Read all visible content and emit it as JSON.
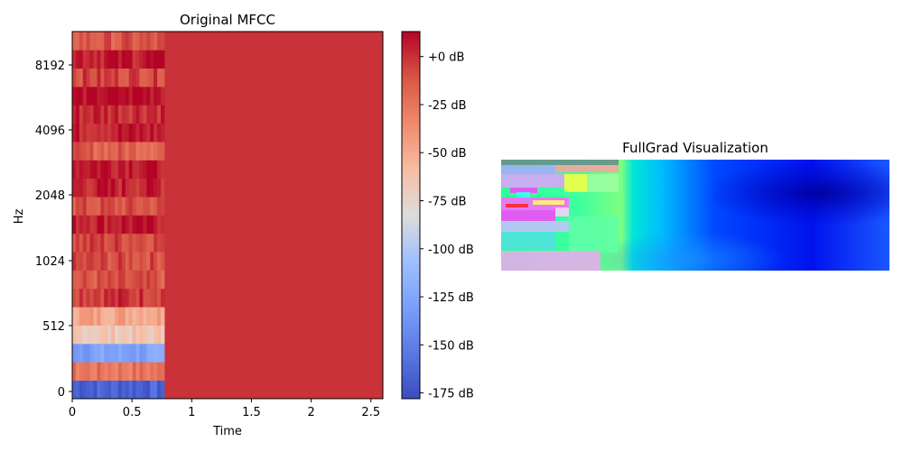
{
  "figure": {
    "left_title": "Original MFCC",
    "right_title": "FullGrad Visualization"
  },
  "chart_data": [
    {
      "type": "heatmap",
      "title": "Original MFCC",
      "xlabel": "Time",
      "ylabel": "Hz",
      "xlim": [
        0,
        2.6
      ],
      "x_ticks": [
        "0",
        "0.5",
        "1",
        "1.5",
        "2",
        "2.5"
      ],
      "x_tick_values": [
        0,
        0.5,
        1,
        1.5,
        2,
        2.5
      ],
      "y_ticks": [
        "0",
        "512",
        "1024",
        "2048",
        "4096",
        "8192"
      ],
      "y_scale": "mel",
      "colormap": "coolwarm",
      "colorbar": {
        "ticks": [
          "+0 dB",
          "-25 dB",
          "-50 dB",
          "-75 dB",
          "-100 dB",
          "-125 dB",
          "-150 dB",
          "-175 dB"
        ],
        "tick_values": [
          0,
          -25,
          -50,
          -75,
          -100,
          -125,
          -150,
          -175
        ],
        "range": [
          -178,
          13
        ]
      },
      "time_active_until": 0.77,
      "bands": {
        "count": 20,
        "note": "band values in dB from bottom (lowest frequency) to top",
        "values": [
          -165,
          -25,
          -128,
          -65,
          -45,
          0,
          -12,
          -8,
          -5,
          8,
          -10,
          5,
          10,
          -15,
          6,
          4,
          12,
          -5,
          8,
          -12
        ]
      },
      "background_value_db": 0
    },
    {
      "type": "heatmap",
      "title": "FullGrad Visualization",
      "colormap": "rainbow-overlay",
      "axes": "off"
    }
  ]
}
